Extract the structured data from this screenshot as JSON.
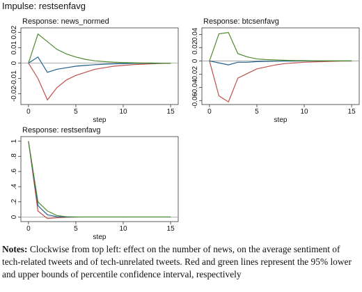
{
  "figure_title": "Impulse: restsenfavg",
  "chart_data": [
    {
      "type": "line",
      "title": "Response: news_normed",
      "xlabel": "step",
      "x": [
        0,
        1,
        2,
        3,
        4,
        5,
        6,
        7,
        8,
        9,
        10,
        11,
        12,
        13,
        14,
        15
      ],
      "xlim": [
        -0.8,
        15.8
      ],
      "xticks": [
        0,
        5,
        10,
        15
      ],
      "ylim": [
        -0.027,
        0.023
      ],
      "yticks": [
        -0.02,
        -0.01,
        0,
        0.01,
        0.02
      ],
      "series": [
        {
          "color": "#c0504d",
          "values": [
            0,
            -0.01,
            -0.024,
            -0.016,
            -0.011,
            -0.008,
            -0.006,
            -0.004,
            -0.003,
            -0.002,
            -0.0015,
            -0.001,
            -0.0007,
            -0.0004,
            -0.0002,
            -0.0001
          ]
        },
        {
          "color": "#1f5f8b",
          "values": [
            0,
            0.004,
            -0.006,
            -0.004,
            -0.003,
            -0.002,
            -0.0015,
            -0.001,
            -0.0007,
            -0.0005,
            -0.0003,
            -0.0002,
            -0.0001,
            -0.0001,
            0,
            0
          ]
        },
        {
          "color": "#4e8a2f",
          "values": [
            0,
            0.019,
            0.014,
            0.009,
            0.006,
            0.004,
            0.0025,
            0.0015,
            0.001,
            0.0006,
            0.0004,
            0.0002,
            0.0001,
            0.0001,
            0,
            0
          ]
        }
      ]
    },
    {
      "type": "line",
      "title": "Response: btcsenfavg",
      "xlabel": "step",
      "x": [
        0,
        1,
        2,
        3,
        4,
        5,
        6,
        7,
        8,
        9,
        10,
        11,
        12,
        13,
        14,
        15
      ],
      "xlim": [
        -0.8,
        15.8
      ],
      "xticks": [
        0,
        5,
        10,
        15
      ],
      "ylim": [
        -0.066,
        0.05
      ],
      "yticks": [
        -0.06,
        -0.04,
        -0.02,
        0,
        0.02,
        0.04
      ],
      "series": [
        {
          "color": "#c0504d",
          "values": [
            0,
            -0.053,
            -0.062,
            -0.026,
            -0.019,
            -0.012,
            -0.009,
            -0.006,
            -0.004,
            -0.003,
            -0.002,
            -0.0014,
            -0.001,
            -0.0006,
            -0.0003,
            -0.0002
          ]
        },
        {
          "color": "#1f5f8b",
          "values": [
            0,
            -0.003,
            -0.006,
            -0.002,
            -0.002,
            -0.001,
            -0.0006,
            -0.0004,
            -0.0003,
            -0.0002,
            -0.0001,
            -0.0001,
            0,
            0,
            0,
            0
          ]
        },
        {
          "color": "#4e8a2f",
          "values": [
            0,
            0.041,
            0.043,
            0.011,
            0.006,
            0.003,
            0.002,
            0.0015,
            0.001,
            0.0006,
            0.0004,
            0.0002,
            0.0001,
            0,
            0,
            0
          ]
        }
      ]
    },
    {
      "type": "line",
      "title": "Response: restsenfavg",
      "xlabel": "step",
      "x": [
        0,
        1,
        2,
        3,
        4,
        5,
        6,
        7,
        8,
        9,
        10,
        11,
        12,
        13,
        14,
        15
      ],
      "xlim": [
        -0.8,
        15.8
      ],
      "xticks": [
        0,
        5,
        10,
        15
      ],
      "ylim": [
        -0.06,
        1.06
      ],
      "yticks": [
        0,
        {
          "value": 0.2,
          "label": ".2"
        },
        {
          "value": 0.4,
          "label": ".4"
        },
        {
          "value": 0.6,
          "label": ".6"
        },
        {
          "value": 0.8,
          "label": ".8"
        },
        1
      ],
      "series": [
        {
          "color": "#c0504d",
          "values": [
            1,
            0.08,
            -0.02,
            -0.01,
            -0.003,
            -0.001,
            0,
            0,
            0,
            0,
            0,
            0,
            0,
            0,
            0,
            0
          ]
        },
        {
          "color": "#1f5f8b",
          "values": [
            1,
            0.15,
            0.03,
            0.005,
            0.001,
            0,
            0,
            0,
            0,
            0,
            0,
            0,
            0,
            0,
            0,
            0
          ]
        },
        {
          "color": "#4e8a2f",
          "values": [
            1,
            0.2,
            0.08,
            0.02,
            0.005,
            0.001,
            0,
            0,
            0,
            0,
            0,
            0,
            0,
            0,
            0,
            0
          ]
        }
      ]
    }
  ],
  "notes": {
    "label": "Notes:",
    "text": "Clockwise from top left: effect on the number of news, on the average sentiment of tech-related tweets and of tech-unrelated tweets. Red and green lines represent the 95% lower and upper bounds of percentile confidence interval, respectively"
  }
}
